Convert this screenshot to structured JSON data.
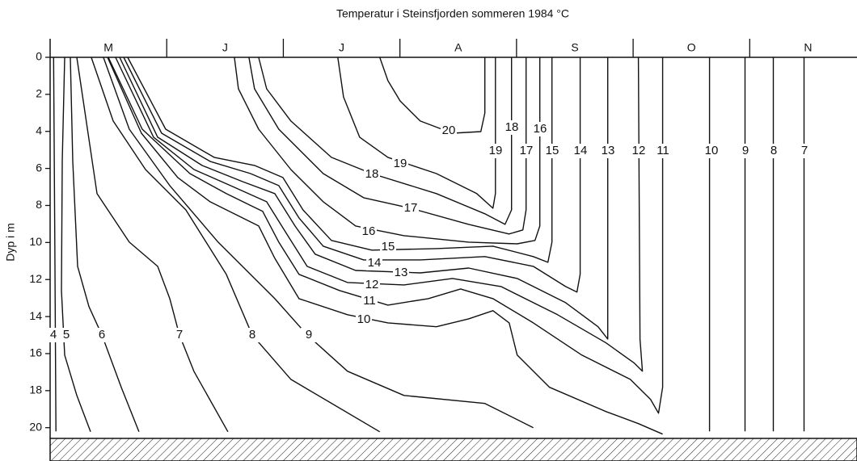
{
  "chart_data": {
    "type": "line",
    "title": "Temperatur i Steinsfjorden sommeren 1984 °C",
    "y_label": "Dyp i m",
    "categories": [
      "M",
      "J",
      "J",
      "A",
      "S",
      "O",
      "N"
    ],
    "xlim": [
      0,
      6.92
    ],
    "xticks": [
      1,
      2,
      3,
      4,
      5,
      6
    ],
    "ylim": [
      0,
      21.8
    ],
    "yticks": [
      0,
      2,
      4,
      6,
      8,
      10,
      12,
      14,
      16,
      18,
      20
    ],
    "series": [
      {
        "name": "4",
        "color": "#111111",
        "x": [
          0.03,
          0.04,
          0.05
        ],
        "values": [
          0,
          10,
          20.2
        ]
      },
      {
        "name": "5",
        "color": "#111111",
        "x": [
          0.125,
          0.104,
          0.097,
          0.125,
          0.229,
          0.347
        ],
        "values": [
          0,
          5.62,
          12.59,
          16.08,
          18.26,
          20.22
        ]
      },
      {
        "name": "6",
        "color": "#111111",
        "x": [
          0.173,
          0.194,
          0.236,
          0.333,
          0.444,
          0.61,
          0.762
        ],
        "values": [
          0,
          5.62,
          11.29,
          13.46,
          14.99,
          17.82,
          20.22
        ]
      },
      {
        "name": "7",
        "color": "#111111",
        "x": [
          0.229,
          0.402,
          0.679,
          0.922,
          1.026,
          1.109,
          1.233,
          1.525,
          null,
          6.466,
          6.466
        ],
        "values": [
          0,
          7.36,
          9.98,
          11.29,
          13.03,
          14.99,
          16.95,
          20.22,
          null,
          0,
          20.2
        ]
      },
      {
        "name": "8",
        "color": "#111111",
        "x": [
          0.353,
          0.541,
          0.818,
          1.164,
          1.511,
          1.733,
          2.065,
          2.827,
          null,
          6.202,
          6.202
        ],
        "values": [
          0,
          3.44,
          6.06,
          8.24,
          11.72,
          14.99,
          17.39,
          20.22,
          null,
          0,
          20.2
        ]
      },
      {
        "name": "9",
        "color": "#111111",
        "x": [
          0.457,
          0.679,
          1.026,
          1.441,
          1.927,
          2.204,
          2.55,
          3.035,
          3.728,
          4.144,
          null,
          5.96,
          5.96
        ],
        "values": [
          0,
          3.88,
          6.93,
          9.98,
          13.03,
          14.99,
          16.95,
          18.26,
          18.69,
          20.0,
          null,
          0,
          20.2
        ]
      },
      {
        "name": "10",
        "color": "#111111",
        "x": [
          0.492,
          0.783,
          1.095,
          1.372,
          1.789,
          1.927,
          2.134,
          2.55,
          2.897,
          3.313,
          3.59,
          3.798,
          3.937,
          4.006,
          4.283,
          4.768,
          5.045,
          5.253,
          null,
          5.655,
          5.655
        ],
        "values": [
          0,
          4.1,
          6.49,
          7.8,
          9.11,
          10.85,
          13.03,
          13.9,
          14.34,
          14.55,
          14.12,
          13.68,
          14.34,
          16.08,
          17.82,
          19.13,
          19.78,
          20.35,
          null,
          0,
          20.2
        ]
      },
      {
        "name": "11",
        "color": "#111111",
        "x": [
          0.499,
          0.79,
          1.199,
          1.511,
          1.823,
          1.961,
          2.134,
          2.481,
          2.897,
          3.243,
          3.52,
          3.798,
          4.144,
          4.56,
          4.976,
          5.149,
          5.218,
          5.253,
          5.253
        ],
        "values": [
          0,
          3.88,
          6.28,
          7.36,
          8.32,
          9.98,
          11.72,
          12.59,
          13.38,
          13.03,
          12.51,
          13.03,
          14.34,
          16.08,
          17.39,
          18.47,
          19.22,
          17.82,
          0
        ]
      },
      {
        "name": "12",
        "color": "#111111",
        "x": [
          0.561,
          0.887,
          1.234,
          1.58,
          1.857,
          2.03,
          2.204,
          2.55,
          3.035,
          3.451,
          3.867,
          4.352,
          4.768,
          5.01,
          5.08,
          5.059,
          5.045
        ],
        "values": [
          0,
          4.31,
          6.06,
          7.02,
          7.8,
          9.55,
          11.29,
          12.16,
          12.29,
          11.94,
          12.38,
          13.9,
          15.42,
          16.51,
          16.95,
          15.21,
          0
        ]
      },
      {
        "name": "13",
        "color": "#111111",
        "x": [
          0.596,
          0.922,
          1.303,
          1.649,
          1.927,
          2.1,
          2.273,
          2.62,
          3.174,
          3.59,
          4.006,
          4.421,
          4.699,
          4.782,
          4.782
        ],
        "values": [
          0,
          4.31,
          5.84,
          6.71,
          7.36,
          9.11,
          10.63,
          11.51,
          11.64,
          11.38,
          11.94,
          13.25,
          14.55,
          15.21,
          0
        ]
      },
      {
        "name": "14",
        "color": "#111111",
        "x": [
          0.631,
          0.956,
          1.372,
          1.719,
          1.961,
          2.134,
          2.342,
          2.689,
          3.174,
          3.728,
          4.144,
          4.421,
          4.518,
          4.546,
          4.546
        ],
        "values": [
          0,
          4.1,
          5.62,
          6.28,
          6.93,
          8.67,
          10.2,
          10.94,
          10.94,
          10.76,
          11.29,
          12.38,
          12.68,
          11.72,
          0
        ]
      },
      {
        "name": "15",
        "color": "#111111",
        "x": [
          0.665,
          0.991,
          1.407,
          1.753,
          1.996,
          2.169,
          2.412,
          2.758,
          3.313,
          3.798,
          4.144,
          4.269,
          4.304,
          4.304
        ],
        "values": [
          0,
          3.88,
          5.4,
          5.84,
          6.49,
          8.24,
          9.89,
          10.41,
          10.33,
          10.2,
          10.76,
          11.07,
          9.98,
          0
        ]
      },
      {
        "name": "16",
        "color": "#111111",
        "x": [
          1.58,
          1.615,
          1.788,
          2.065,
          2.342,
          2.62,
          3.035,
          3.59,
          4.006,
          4.158,
          4.2,
          4.2
        ],
        "values": [
          0,
          1.7,
          3.88,
          6.06,
          7.8,
          9.11,
          9.63,
          9.98,
          10.07,
          9.89,
          9.11,
          0
        ]
      },
      {
        "name": "17",
        "color": "#111111",
        "x": [
          1.705,
          1.753,
          1.961,
          2.342,
          2.689,
          3.091,
          3.59,
          3.936,
          4.054,
          4.082,
          4.082
        ],
        "values": [
          0,
          1.7,
          3.88,
          6.28,
          7.58,
          8.15,
          9.02,
          9.54,
          9.32,
          8.24,
          0
        ]
      },
      {
        "name": "18",
        "color": "#111111",
        "x": [
          1.788,
          1.857,
          2.065,
          2.412,
          2.758,
          3.313,
          3.728,
          3.902,
          3.957,
          3.957
        ],
        "values": [
          0,
          1.7,
          3.44,
          5.4,
          6.28,
          7.36,
          8.45,
          9.02,
          8.24,
          0
        ]
      },
      {
        "name": "19",
        "color": "#111111",
        "x": [
          2.467,
          2.516,
          2.654,
          2.897,
          3.313,
          3.659,
          3.798,
          3.819,
          3.819
        ],
        "values": [
          0,
          2.14,
          4.31,
          5.4,
          6.28,
          7.36,
          8.15,
          7.36,
          0
        ]
      },
      {
        "name": "20",
        "color": "#111111",
        "x": [
          2.827,
          2.897,
          3.001,
          3.174,
          3.451,
          3.694,
          3.728,
          3.728
        ],
        "values": [
          0,
          1.26,
          2.35,
          3.44,
          4.1,
          4.01,
          3.01,
          0
        ]
      }
    ]
  }
}
